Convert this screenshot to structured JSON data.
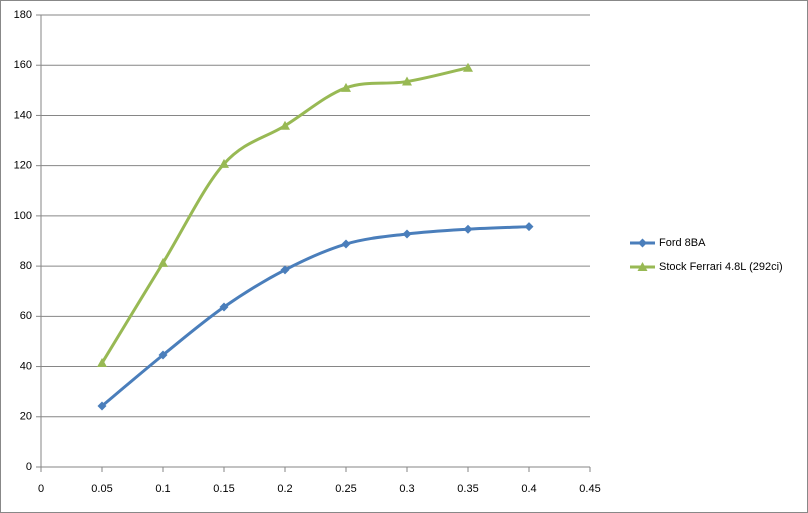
{
  "chart_data": {
    "type": "line",
    "x": [
      0.05,
      0.1,
      0.15,
      0.2,
      0.25,
      0.3,
      0.35,
      0.4
    ],
    "series": [
      {
        "name": "Ford 8BA",
        "color": "#4a7ebb",
        "marker": "diamond",
        "values": [
          24.3,
          44.6,
          63.7,
          78.5,
          88.8,
          92.8,
          94.7,
          95.7
        ]
      },
      {
        "name": "Stock Ferrari 4.8L (292ci)",
        "color": "#98b954",
        "marker": "triangle",
        "values": [
          41.4,
          81.3,
          120.7,
          135.9,
          151,
          153.5,
          159,
          null
        ]
      }
    ],
    "xlim": [
      0,
      0.45
    ],
    "xticks": [
      0,
      0.05,
      0.1,
      0.15,
      0.2,
      0.25,
      0.3,
      0.35,
      0.4,
      0.45
    ],
    "ylim": [
      0,
      180
    ],
    "yticks": [
      0,
      20,
      40,
      60,
      80,
      100,
      120,
      140,
      160,
      180
    ],
    "grid": true,
    "smooth": true,
    "legend": "right"
  }
}
